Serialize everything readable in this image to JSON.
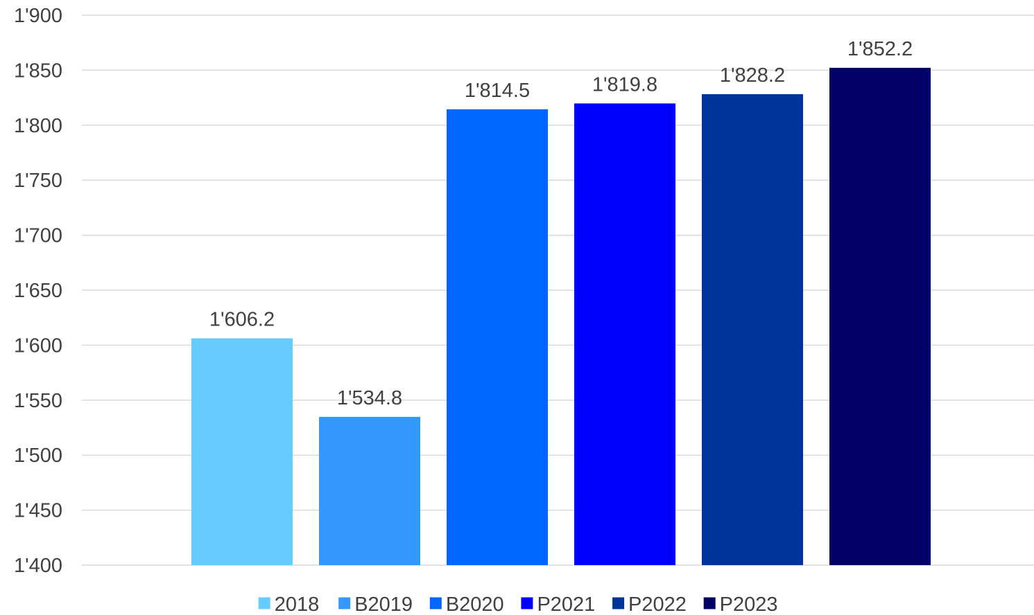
{
  "chart_data": {
    "type": "bar",
    "title": "",
    "xlabel": "",
    "ylabel": "",
    "categories": [
      "2018",
      "B2019",
      "B2020",
      "P2021",
      "P2022",
      "P2023"
    ],
    "values": [
      1606.2,
      1534.8,
      1814.5,
      1819.8,
      1828.2,
      1852.2
    ],
    "data_labels": [
      "1'606.2",
      "1'534.8",
      "1'814.5",
      "1'819.8",
      "1'828.2",
      "1'852.2"
    ],
    "colors": [
      "#66ccff",
      "#3399ff",
      "#0066ff",
      "#0000ff",
      "#003399",
      "#000066"
    ],
    "ylim": [
      1400,
      1900
    ],
    "y_ticks": [
      1400,
      1450,
      1500,
      1550,
      1600,
      1650,
      1700,
      1750,
      1800,
      1850,
      1900
    ],
    "y_tick_labels": [
      "1'400",
      "1'450",
      "1'500",
      "1'550",
      "1'600",
      "1'650",
      "1'700",
      "1'750",
      "1'800",
      "1'850",
      "1'900"
    ],
    "grid": true,
    "legend": {
      "position": "bottom",
      "entries": [
        "2018",
        "B2019",
        "B2020",
        "P2021",
        "P2022",
        "P2023"
      ]
    }
  }
}
